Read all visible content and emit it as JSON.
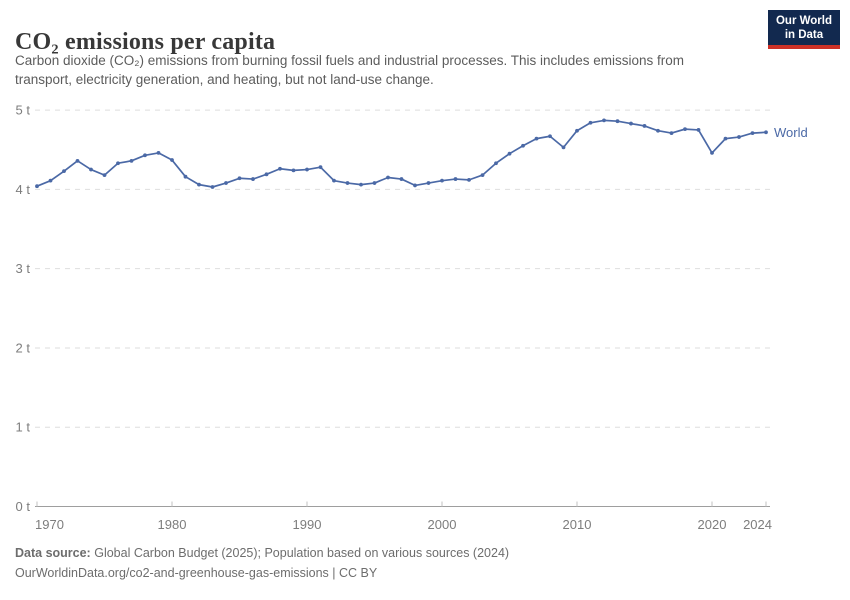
{
  "header": {
    "title": "CO₂ emissions per capita",
    "subtitle_lines": [
      "Carbon dioxide (CO₂) emissions from burning fossil fuels and industrial processes. This includes emissions from",
      "transport, electricity generation, and heating, but not land-use change."
    ]
  },
  "logo": {
    "line1": "Our World",
    "line2": "in Data",
    "bg_color": "#12294f",
    "accent_color": "#cd3127"
  },
  "chart_data": {
    "type": "line",
    "title": "CO₂ emissions per capita",
    "unit": "t",
    "grid": "horizontal-dashed",
    "legend_position": "end-of-line",
    "xlim": [
      1970,
      2024
    ],
    "ylim": [
      0,
      5
    ],
    "x_ticks": [
      1970,
      1980,
      1990,
      2000,
      2010,
      2020,
      2024
    ],
    "y_ticks": [
      {
        "value": 0,
        "label": "0 t"
      },
      {
        "value": 1,
        "label": "1 t"
      },
      {
        "value": 2,
        "label": "2 t"
      },
      {
        "value": 3,
        "label": "3 t"
      },
      {
        "value": 4,
        "label": "4 t"
      },
      {
        "value": 5,
        "label": "5 t"
      }
    ],
    "x": [
      1970,
      1971,
      1972,
      1973,
      1974,
      1975,
      1976,
      1977,
      1978,
      1979,
      1980,
      1981,
      1982,
      1983,
      1984,
      1985,
      1986,
      1987,
      1988,
      1989,
      1990,
      1991,
      1992,
      1993,
      1994,
      1995,
      1996,
      1997,
      1998,
      1999,
      2000,
      2001,
      2002,
      2003,
      2004,
      2005,
      2006,
      2007,
      2008,
      2009,
      2010,
      2011,
      2012,
      2013,
      2014,
      2015,
      2016,
      2017,
      2018,
      2019,
      2020,
      2021,
      2022,
      2023,
      2024
    ],
    "series": [
      {
        "name": "World",
        "color": "#4b69a6",
        "values": [
          4.04,
          4.11,
          4.23,
          4.36,
          4.25,
          4.18,
          4.33,
          4.36,
          4.43,
          4.46,
          4.37,
          4.16,
          4.06,
          4.03,
          4.08,
          4.14,
          4.13,
          4.19,
          4.26,
          4.24,
          4.25,
          4.28,
          4.11,
          4.08,
          4.06,
          4.08,
          4.15,
          4.13,
          4.05,
          4.08,
          4.11,
          4.13,
          4.12,
          4.18,
          4.33,
          4.45,
          4.55,
          4.64,
          4.67,
          4.53,
          4.74,
          4.84,
          4.87,
          4.86,
          4.83,
          4.8,
          4.74,
          4.71,
          4.76,
          4.75,
          4.46,
          4.64,
          4.66,
          4.71,
          4.72
        ]
      }
    ],
    "colors": {
      "gridline": "#dedede",
      "axis_line": "#9e9e9e",
      "tick_mark": "#c2c2c2",
      "tick_label": "#7d7d7d"
    }
  },
  "footer": {
    "source_label": "Data source:",
    "source_text": "Global Carbon Budget (2025); Population based on various sources (2024)",
    "license_line": "OurWorldinData.org/co2-and-greenhouse-gas-emissions | CC BY"
  }
}
